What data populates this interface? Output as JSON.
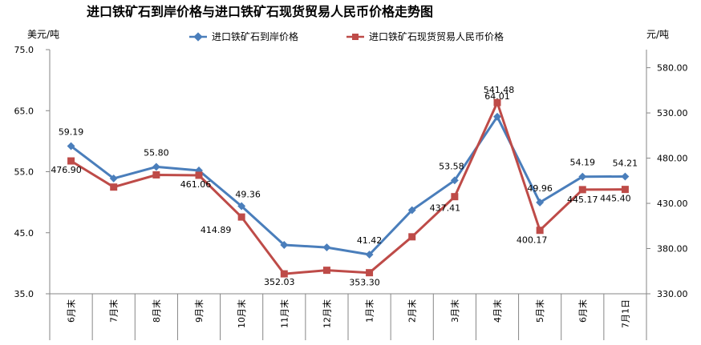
{
  "chart_data": {
    "type": "line",
    "title": "进口铁矿石到岸价格与进口铁矿石现货贸易人民币价格走势图",
    "y_left_unit": "美元/吨",
    "y_right_unit": "元/吨",
    "y_left": {
      "min": 35,
      "max": 75,
      "ticks": [
        "35.0",
        "45.0",
        "55.0",
        "65.0",
        "75.0"
      ]
    },
    "y_right": {
      "min": 330,
      "max": 600,
      "ticks": [
        "330.00",
        "380.00",
        "430.00",
        "480.00",
        "530.00",
        "580.00"
      ]
    },
    "grid": false,
    "legend": "top",
    "categories": [
      "6月末",
      "7月末",
      "8月末",
      "9月末",
      "10月末",
      "11月末",
      "12月末",
      "1月末",
      "2月末",
      "3月末",
      "4月末",
      "5月末",
      "6月末",
      "7月1日"
    ],
    "series": [
      {
        "name": "进口铁矿石到岸价格",
        "axis": "left",
        "color": "#4a7ebb",
        "marker": "diamond",
        "values": [
          59.19,
          53.9,
          55.8,
          55.2,
          49.36,
          43.0,
          42.6,
          41.42,
          48.7,
          53.58,
          64.01,
          49.96,
          54.19,
          54.21
        ],
        "labels": [
          "59.19",
          "",
          "55.80",
          "",
          "49.36",
          "",
          "",
          "41.42",
          "",
          "53.58",
          "64.01",
          "49.96",
          "54.19",
          "54.21"
        ]
      },
      {
        "name": "进口铁矿石现货贸易人民币价格",
        "axis": "right",
        "color": "#be4b48",
        "marker": "square",
        "values": [
          476.9,
          448.0,
          461.5,
          461.06,
          414.89,
          352.03,
          356.0,
          353.3,
          393.0,
          437.41,
          541.48,
          400.17,
          445.17,
          445.4
        ],
        "labels": [
          "476.90",
          "",
          "",
          "461.06",
          "414.89",
          "352.03",
          "",
          "353.30",
          "",
          "437.41",
          "541.48",
          "400.17",
          "445.17",
          "445.40"
        ]
      }
    ]
  }
}
